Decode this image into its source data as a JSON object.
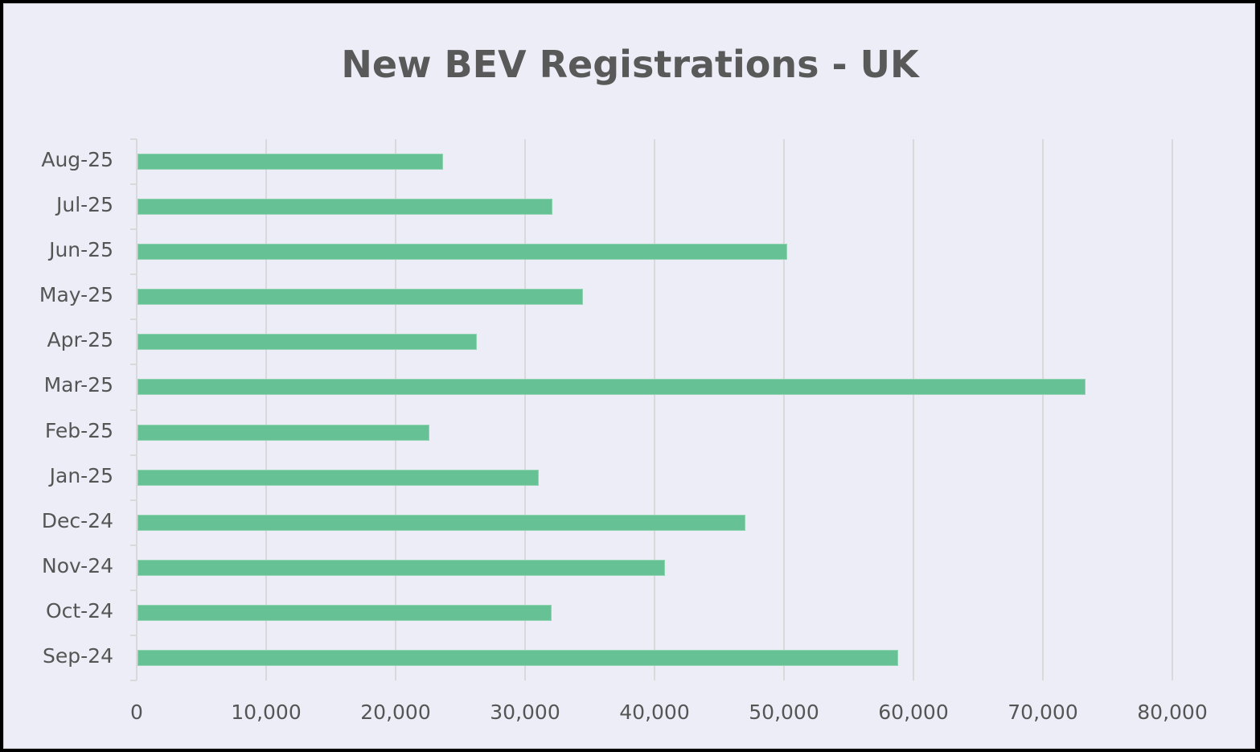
{
  "chart_data": {
    "type": "bar",
    "orientation": "horizontal",
    "title": "New BEV Registrations - UK",
    "xlabel": "",
    "ylabel": "",
    "categories": [
      "Aug-25",
      "Jul-25",
      "Jun-25",
      "May-25",
      "Apr-25",
      "Mar-25",
      "Feb-25",
      "Jan-25",
      "Dec-24",
      "Nov-24",
      "Oct-24",
      "Sep-24"
    ],
    "values": [
      23600,
      32050,
      50190,
      34400,
      26210,
      73230,
      22550,
      30990,
      46960,
      40750,
      32000,
      58760
    ],
    "xlim": [
      0,
      80000
    ],
    "x_ticks": [
      0,
      10000,
      20000,
      30000,
      40000,
      50000,
      60000,
      70000,
      80000
    ],
    "x_tick_labels": [
      "0",
      "10,000",
      "20,000",
      "30,000",
      "40,000",
      "50,000",
      "60,000",
      "70,000",
      "80,000"
    ],
    "grid": true,
    "legend": null,
    "bar_color": "#66C194"
  },
  "colors": {
    "background": "#EDEDF7",
    "title": "#595959",
    "gridline": "#D9D9DC",
    "bar": "#66C194"
  }
}
